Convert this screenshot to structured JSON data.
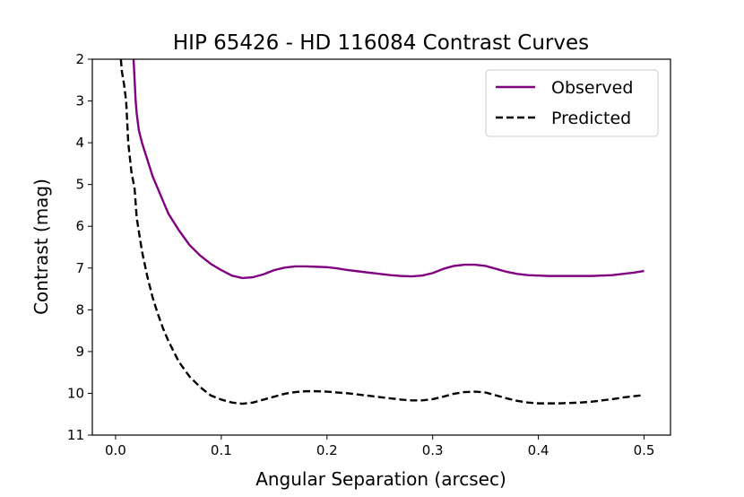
{
  "chart_data": {
    "type": "line",
    "title": "HIP 65426 - HD 116084 Contrast Curves",
    "xlabel": "Angular Separation (arcsec)",
    "ylabel": "Contrast (mag)",
    "xlim": [
      -0.022,
      0.525
    ],
    "ylim": [
      11,
      2
    ],
    "y_inverted": true,
    "xticks": [
      "0.0",
      "0.1",
      "0.2",
      "0.3",
      "0.4",
      "0.5"
    ],
    "yticks": [
      "2",
      "3",
      "4",
      "5",
      "6",
      "7",
      "8",
      "9",
      "10",
      "11"
    ],
    "grid": false,
    "legend_position": "top-right",
    "series": [
      {
        "name": "Observed",
        "color": "#800080",
        "style": "solid",
        "x": [
          0.017,
          0.018,
          0.019,
          0.02,
          0.022,
          0.025,
          0.03,
          0.035,
          0.04,
          0.045,
          0.05,
          0.06,
          0.07,
          0.08,
          0.09,
          0.1,
          0.11,
          0.12,
          0.13,
          0.14,
          0.15,
          0.16,
          0.17,
          0.18,
          0.19,
          0.2,
          0.21,
          0.22,
          0.23,
          0.24,
          0.25,
          0.26,
          0.27,
          0.28,
          0.29,
          0.3,
          0.31,
          0.32,
          0.33,
          0.34,
          0.35,
          0.36,
          0.37,
          0.38,
          0.39,
          0.4,
          0.41,
          0.42,
          0.43,
          0.44,
          0.45,
          0.46,
          0.47,
          0.48,
          0.49,
          0.5
        ],
        "values": [
          2.0,
          2.5,
          3.0,
          3.3,
          3.7,
          4.0,
          4.4,
          4.8,
          5.1,
          5.4,
          5.7,
          6.1,
          6.45,
          6.7,
          6.9,
          7.05,
          7.18,
          7.24,
          7.22,
          7.15,
          7.05,
          6.99,
          6.96,
          6.96,
          6.97,
          6.98,
          7.01,
          7.05,
          7.08,
          7.11,
          7.14,
          7.17,
          7.19,
          7.2,
          7.18,
          7.12,
          7.02,
          6.95,
          6.92,
          6.92,
          6.95,
          7.02,
          7.09,
          7.14,
          7.17,
          7.18,
          7.19,
          7.19,
          7.19,
          7.19,
          7.19,
          7.18,
          7.17,
          7.14,
          7.11,
          7.07
        ]
      },
      {
        "name": "Predicted",
        "color": "#000000",
        "style": "dashed",
        "x": [
          0.005,
          0.006,
          0.008,
          0.01,
          0.012,
          0.015,
          0.018,
          0.02,
          0.025,
          0.03,
          0.035,
          0.04,
          0.045,
          0.05,
          0.06,
          0.07,
          0.08,
          0.09,
          0.1,
          0.11,
          0.12,
          0.13,
          0.14,
          0.15,
          0.16,
          0.17,
          0.18,
          0.19,
          0.2,
          0.21,
          0.22,
          0.23,
          0.24,
          0.25,
          0.26,
          0.27,
          0.28,
          0.29,
          0.3,
          0.31,
          0.32,
          0.33,
          0.34,
          0.35,
          0.36,
          0.37,
          0.38,
          0.39,
          0.4,
          0.41,
          0.42,
          0.43,
          0.44,
          0.45,
          0.46,
          0.47,
          0.48,
          0.49,
          0.5
        ],
        "values": [
          2.0,
          2.3,
          2.6,
          3.0,
          4.0,
          4.7,
          5.1,
          5.8,
          6.6,
          7.2,
          7.7,
          8.1,
          8.45,
          8.75,
          9.25,
          9.6,
          9.85,
          10.05,
          10.15,
          10.22,
          10.25,
          10.22,
          10.15,
          10.08,
          10.01,
          9.97,
          9.95,
          9.95,
          9.96,
          9.98,
          10.0,
          10.03,
          10.06,
          10.09,
          10.12,
          10.15,
          10.17,
          10.17,
          10.14,
          10.08,
          10.01,
          9.97,
          9.96,
          9.98,
          10.05,
          10.12,
          10.18,
          10.22,
          10.24,
          10.24,
          10.24,
          10.23,
          10.22,
          10.2,
          10.17,
          10.14,
          10.1,
          10.07,
          10.04
        ]
      }
    ]
  }
}
